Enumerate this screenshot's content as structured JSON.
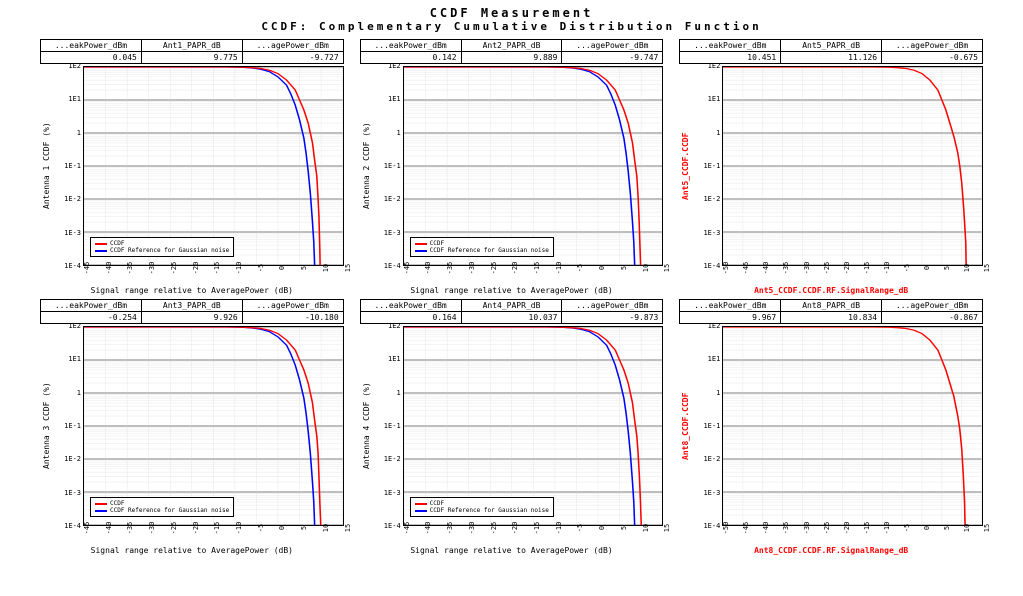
{
  "titles": {
    "line1": "CCDF Measurement",
    "line2": "CCDF: Complementary Cumulative Distribution Function"
  },
  "colors": {
    "ccdf_line": "#ff0000",
    "ref_line": "#0000ff",
    "grid_major": "#000000",
    "grid_minor": "#cccccc",
    "background": "#ffffff",
    "red_text": "#ff0000"
  },
  "yticks": {
    "labels": [
      "1E2",
      "1E1",
      "1",
      "1E-1",
      "1E-2",
      "1E-3",
      "1E-4"
    ],
    "positions": [
      0,
      0.1667,
      0.3333,
      0.5,
      0.6667,
      0.8333,
      1.0
    ]
  },
  "panels": [
    {
      "headers": [
        "...eakPower_dBm",
        "Ant1_PAPR_dB",
        "...agePower_dBm"
      ],
      "values": [
        "0.045",
        "9.775",
        "-9.727"
      ],
      "ylabel": "Antenna 1 CCDF (%)",
      "xlabel": "Signal range relative to AveragePower (dB)",
      "ylabel_red": false,
      "xlabel_red": false,
      "xmin": -45,
      "xmax": 15,
      "xstep": 5,
      "has_legend": true,
      "has_ref": true,
      "legend": {
        "s1": "CCDF",
        "s2": "CCDF Reference for Gaussian noise"
      },
      "ccdf_data": [
        [
          -45,
          100
        ],
        [
          -40,
          100
        ],
        [
          -35,
          100
        ],
        [
          -30,
          100
        ],
        [
          -25,
          100
        ],
        [
          -20,
          100
        ],
        [
          -15,
          99.9
        ],
        [
          -12,
          99.5
        ],
        [
          -10,
          99
        ],
        [
          -8,
          98
        ],
        [
          -6,
          95
        ],
        [
          -4,
          90
        ],
        [
          -2,
          80
        ],
        [
          0,
          63
        ],
        [
          2,
          40
        ],
        [
          4,
          20
        ],
        [
          5,
          10
        ],
        [
          6,
          5
        ],
        [
          7,
          2
        ],
        [
          7.5,
          1
        ],
        [
          8,
          0.5
        ],
        [
          8.5,
          0.15
        ],
        [
          9,
          0.05
        ],
        [
          9.3,
          0.01
        ],
        [
          9.5,
          0.003
        ],
        [
          9.7,
          0.0003
        ],
        [
          9.77,
          0.0001
        ]
      ],
      "ref_data": [
        [
          -45,
          100
        ],
        [
          -30,
          100
        ],
        [
          -20,
          100
        ],
        [
          -15,
          99.9
        ],
        [
          -12,
          99.5
        ],
        [
          -10,
          99
        ],
        [
          -8,
          97
        ],
        [
          -6,
          93
        ],
        [
          -4,
          85
        ],
        [
          -2,
          72
        ],
        [
          0,
          50
        ],
        [
          2,
          28
        ],
        [
          3,
          15
        ],
        [
          4,
          7
        ],
        [
          5,
          2.5
        ],
        [
          6,
          0.7
        ],
        [
          6.5,
          0.25
        ],
        [
          7,
          0.07
        ],
        [
          7.5,
          0.015
        ],
        [
          8,
          0.002
        ],
        [
          8.3,
          0.0005
        ],
        [
          8.5,
          0.0001
        ]
      ]
    },
    {
      "headers": [
        "...eakPower_dBm",
        "Ant2_PAPR_dB",
        "...agePower_dBm"
      ],
      "values": [
        "0.142",
        "9.889",
        "-9.747"
      ],
      "ylabel": "Antenna 2 CCDF (%)",
      "xlabel": "Signal range relative to AveragePower (dB)",
      "ylabel_red": false,
      "xlabel_red": false,
      "xmin": -45,
      "xmax": 15,
      "xstep": 5,
      "has_legend": true,
      "has_ref": true,
      "legend": {
        "s1": "CCDF",
        "s2": "CCDF Reference for Gaussian noise"
      },
      "ccdf_data": [
        [
          -45,
          100
        ],
        [
          -40,
          100
        ],
        [
          -35,
          100
        ],
        [
          -30,
          100
        ],
        [
          -25,
          100
        ],
        [
          -20,
          100
        ],
        [
          -15,
          99.9
        ],
        [
          -12,
          99.5
        ],
        [
          -10,
          99
        ],
        [
          -8,
          98
        ],
        [
          -6,
          95
        ],
        [
          -4,
          90
        ],
        [
          -2,
          80
        ],
        [
          0,
          63
        ],
        [
          2,
          40
        ],
        [
          4,
          20
        ],
        [
          5,
          10
        ],
        [
          6,
          5
        ],
        [
          7,
          2
        ],
        [
          7.5,
          1
        ],
        [
          8,
          0.5
        ],
        [
          8.5,
          0.15
        ],
        [
          9,
          0.05
        ],
        [
          9.3,
          0.012
        ],
        [
          9.5,
          0.003
        ],
        [
          9.7,
          0.0005
        ],
        [
          9.88,
          0.0001
        ]
      ],
      "ref_data": [
        [
          -45,
          100
        ],
        [
          -30,
          100
        ],
        [
          -20,
          100
        ],
        [
          -15,
          99.9
        ],
        [
          -12,
          99.5
        ],
        [
          -10,
          99
        ],
        [
          -8,
          97
        ],
        [
          -6,
          93
        ],
        [
          -4,
          85
        ],
        [
          -2,
          72
        ],
        [
          0,
          50
        ],
        [
          2,
          28
        ],
        [
          3,
          15
        ],
        [
          4,
          7
        ],
        [
          5,
          2.5
        ],
        [
          6,
          0.7
        ],
        [
          6.5,
          0.25
        ],
        [
          7,
          0.07
        ],
        [
          7.5,
          0.015
        ],
        [
          8,
          0.002
        ],
        [
          8.3,
          0.0005
        ],
        [
          8.5,
          0.0001
        ]
      ]
    },
    {
      "headers": [
        "...eakPower_dBm",
        "Ant5_PAPR_dB",
        "...agePower_dBm"
      ],
      "values": [
        "10.451",
        "11.126",
        "-0.675"
      ],
      "ylabel": "Ant5_CCDF.CCDF",
      "xlabel": "Ant5_CCDF.CCDF.RF.SignalRange_dB",
      "ylabel_red": true,
      "xlabel_red": true,
      "xmin": -50,
      "xmax": 15,
      "xstep": 5,
      "has_legend": false,
      "has_ref": false,
      "legend": {
        "s1": "CCDF",
        "s2": ""
      },
      "ccdf_data": [
        [
          -50,
          100
        ],
        [
          -40,
          100
        ],
        [
          -30,
          100
        ],
        [
          -25,
          100
        ],
        [
          -20,
          100
        ],
        [
          -15,
          99.9
        ],
        [
          -12,
          99.5
        ],
        [
          -10,
          99
        ],
        [
          -8,
          98
        ],
        [
          -6,
          95
        ],
        [
          -4,
          90
        ],
        [
          -2,
          80
        ],
        [
          0,
          63
        ],
        [
          2,
          40
        ],
        [
          4,
          20
        ],
        [
          5,
          10
        ],
        [
          6,
          5
        ],
        [
          7,
          2
        ],
        [
          8,
          0.8
        ],
        [
          9,
          0.25
        ],
        [
          9.5,
          0.1
        ],
        [
          10,
          0.03
        ],
        [
          10.5,
          0.005
        ],
        [
          11,
          0.0005
        ],
        [
          11.1,
          0.0001
        ]
      ],
      "ref_data": []
    },
    {
      "headers": [
        "...eakPower_dBm",
        "Ant3_PAPR_dB",
        "...agePower_dBm"
      ],
      "values": [
        "-0.254",
        "9.926",
        "-10.180"
      ],
      "ylabel": "Antenna 3 CCDF (%)",
      "xlabel": "Signal range relative to AveragePower (dB)",
      "ylabel_red": false,
      "xlabel_red": false,
      "xmin": -45,
      "xmax": 15,
      "xstep": 5,
      "has_legend": true,
      "has_ref": true,
      "legend": {
        "s1": "CCDF",
        "s2": "CCDF Reference for Gaussian noise"
      },
      "ccdf_data": [
        [
          -45,
          100
        ],
        [
          -40,
          100
        ],
        [
          -35,
          100
        ],
        [
          -30,
          100
        ],
        [
          -25,
          100
        ],
        [
          -20,
          100
        ],
        [
          -15,
          99.9
        ],
        [
          -12,
          99.5
        ],
        [
          -10,
          99
        ],
        [
          -8,
          98
        ],
        [
          -6,
          95
        ],
        [
          -4,
          90
        ],
        [
          -2,
          80
        ],
        [
          0,
          63
        ],
        [
          2,
          40
        ],
        [
          4,
          20
        ],
        [
          5,
          10
        ],
        [
          6,
          5
        ],
        [
          7,
          2
        ],
        [
          7.5,
          1
        ],
        [
          8,
          0.5
        ],
        [
          8.5,
          0.15
        ],
        [
          9,
          0.05
        ],
        [
          9.3,
          0.015
        ],
        [
          9.5,
          0.003
        ],
        [
          9.7,
          0.0005
        ],
        [
          9.92,
          0.0001
        ]
      ],
      "ref_data": [
        [
          -45,
          100
        ],
        [
          -30,
          100
        ],
        [
          -20,
          100
        ],
        [
          -15,
          99.9
        ],
        [
          -12,
          99.5
        ],
        [
          -10,
          99
        ],
        [
          -8,
          97
        ],
        [
          -6,
          93
        ],
        [
          -4,
          85
        ],
        [
          -2,
          72
        ],
        [
          0,
          50
        ],
        [
          2,
          28
        ],
        [
          3,
          15
        ],
        [
          4,
          7
        ],
        [
          5,
          2.5
        ],
        [
          6,
          0.7
        ],
        [
          6.5,
          0.25
        ],
        [
          7,
          0.07
        ],
        [
          7.5,
          0.015
        ],
        [
          8,
          0.002
        ],
        [
          8.3,
          0.0005
        ],
        [
          8.5,
          0.0001
        ]
      ]
    },
    {
      "headers": [
        "...eakPower_dBm",
        "Ant4_PAPR_dB",
        "...agePower_dBm"
      ],
      "values": [
        "0.164",
        "10.037",
        "-9.873"
      ],
      "ylabel": "Antenna 4 CCDF (%)",
      "xlabel": "Signal range relative to AveragePower (dB)",
      "ylabel_red": false,
      "xlabel_red": false,
      "xmin": -45,
      "xmax": 15,
      "xstep": 5,
      "has_legend": true,
      "has_ref": true,
      "legend": {
        "s1": "CCDF",
        "s2": "CCDF Reference for Gaussian noise"
      },
      "ccdf_data": [
        [
          -45,
          100
        ],
        [
          -40,
          100
        ],
        [
          -35,
          100
        ],
        [
          -30,
          100
        ],
        [
          -25,
          100
        ],
        [
          -20,
          100
        ],
        [
          -15,
          99.9
        ],
        [
          -12,
          99.5
        ],
        [
          -10,
          99
        ],
        [
          -8,
          98
        ],
        [
          -6,
          95
        ],
        [
          -4,
          90
        ],
        [
          -2,
          80
        ],
        [
          0,
          63
        ],
        [
          2,
          40
        ],
        [
          4,
          20
        ],
        [
          5,
          10
        ],
        [
          6,
          5
        ],
        [
          7,
          2
        ],
        [
          7.5,
          1
        ],
        [
          8,
          0.5
        ],
        [
          8.5,
          0.15
        ],
        [
          9,
          0.05
        ],
        [
          9.3,
          0.015
        ],
        [
          9.6,
          0.003
        ],
        [
          9.85,
          0.0005
        ],
        [
          10.03,
          0.0001
        ]
      ],
      "ref_data": [
        [
          -45,
          100
        ],
        [
          -30,
          100
        ],
        [
          -20,
          100
        ],
        [
          -15,
          99.9
        ],
        [
          -12,
          99.5
        ],
        [
          -10,
          99
        ],
        [
          -8,
          97
        ],
        [
          -6,
          93
        ],
        [
          -4,
          85
        ],
        [
          -2,
          72
        ],
        [
          0,
          50
        ],
        [
          2,
          28
        ],
        [
          3,
          15
        ],
        [
          4,
          7
        ],
        [
          5,
          2.5
        ],
        [
          6,
          0.7
        ],
        [
          6.5,
          0.25
        ],
        [
          7,
          0.07
        ],
        [
          7.5,
          0.015
        ],
        [
          8,
          0.002
        ],
        [
          8.3,
          0.0005
        ],
        [
          8.5,
          0.0001
        ]
      ]
    },
    {
      "headers": [
        "...eakPower_dBm",
        "Ant8_PAPR_dB",
        "...agePower_dBm"
      ],
      "values": [
        "9.967",
        "10.834",
        "-0.867"
      ],
      "ylabel": "Ant8_CCDF.CCDF",
      "xlabel": "Ant8_CCDF.CCDF.RF.SignalRange_dB",
      "ylabel_red": true,
      "xlabel_red": true,
      "xmin": -50,
      "xmax": 15,
      "xstep": 5,
      "has_legend": false,
      "has_ref": false,
      "legend": {
        "s1": "CCDF",
        "s2": ""
      },
      "ccdf_data": [
        [
          -50,
          100
        ],
        [
          -40,
          100
        ],
        [
          -30,
          100
        ],
        [
          -25,
          100
        ],
        [
          -20,
          100
        ],
        [
          -15,
          99.9
        ],
        [
          -12,
          99.5
        ],
        [
          -10,
          99
        ],
        [
          -8,
          98
        ],
        [
          -6,
          95
        ],
        [
          -4,
          90
        ],
        [
          -2,
          80
        ],
        [
          0,
          63
        ],
        [
          2,
          40
        ],
        [
          4,
          20
        ],
        [
          5,
          10
        ],
        [
          6,
          5
        ],
        [
          7,
          2
        ],
        [
          8,
          0.8
        ],
        [
          9,
          0.2
        ],
        [
          9.5,
          0.08
        ],
        [
          10,
          0.02
        ],
        [
          10.4,
          0.003
        ],
        [
          10.7,
          0.0005
        ],
        [
          10.83,
          0.0001
        ]
      ],
      "ref_data": []
    }
  ]
}
